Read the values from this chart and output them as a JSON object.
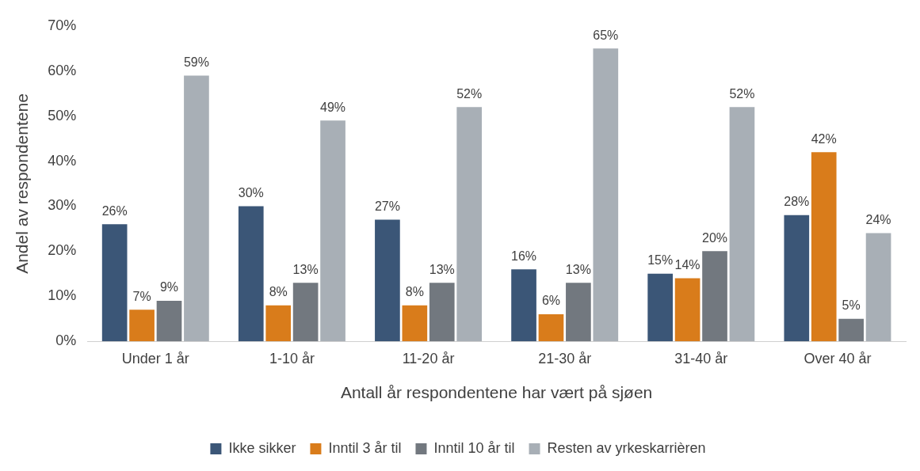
{
  "chart_data": {
    "type": "bar",
    "xlabel": "Antall år respondentene har vært på sjøen",
    "ylabel": "Andel av respondentene",
    "categories": [
      "Under 1 år",
      "1-10 år",
      "11-20 år",
      "21-30 år",
      "31-40 år",
      "Over 40 år"
    ],
    "series": [
      {
        "name": "Ikke sikker",
        "color": "#3b5677",
        "values": [
          26,
          30,
          27,
          16,
          15,
          28
        ],
        "value_labels": [
          "26%",
          "30%",
          "27%",
          "16%",
          "15%",
          "28%"
        ]
      },
      {
        "name": "Inntil 3 år til",
        "color": "#d97c1b",
        "values": [
          7,
          8,
          8,
          6,
          14,
          42
        ],
        "value_labels": [
          "7%",
          "8%",
          "8%",
          "6%",
          "14%",
          "42%"
        ]
      },
      {
        "name": "Inntil 10 år til",
        "color": "#72787f",
        "values": [
          9,
          13,
          13,
          13,
          20,
          5
        ],
        "value_labels": [
          "9%",
          "13%",
          "13%",
          "13%",
          "20%",
          "5%"
        ]
      },
      {
        "name": "Resten av yrkeskarrièren",
        "color": "#a8afb6",
        "values": [
          59,
          49,
          52,
          65,
          52,
          24
        ],
        "value_labels": [
          "59%",
          "49%",
          "52%",
          "65%",
          "52%",
          "24%"
        ]
      }
    ],
    "ylim": [
      0,
      70
    ],
    "yticks": [
      {
        "value": 0,
        "label": "0%"
      },
      {
        "value": 10,
        "label": "10%"
      },
      {
        "value": 20,
        "label": "20%"
      },
      {
        "value": 30,
        "label": "30%"
      },
      {
        "value": 40,
        "label": "40%"
      },
      {
        "value": 50,
        "label": "50%"
      },
      {
        "value": 60,
        "label": "60%"
      },
      {
        "value": 70,
        "label": "70%"
      }
    ],
    "grid": false,
    "legend": "bottom"
  }
}
